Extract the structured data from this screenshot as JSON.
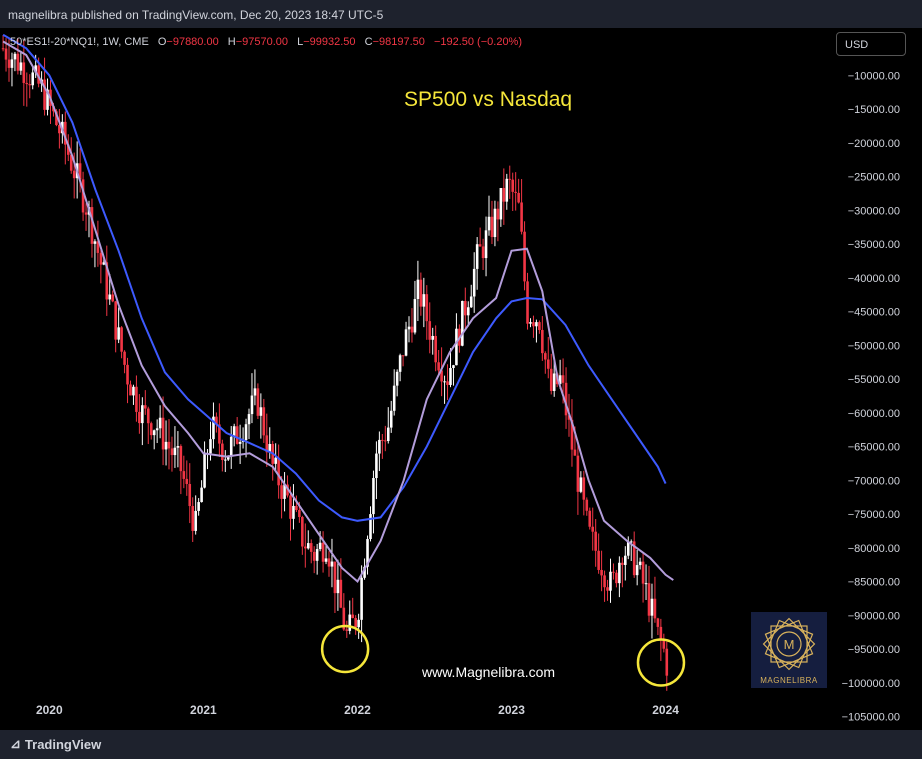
{
  "header": {
    "publisher": "magnelibra published on TradingView.com, Dec 20, 2023 18:47 UTC-5"
  },
  "legend": {
    "symbol": "50*ES1!-20*NQ1!, 1W, CME",
    "o_label": "O",
    "o_value": "−97880.00",
    "h_label": "H",
    "h_value": "−97570.00",
    "l_label": "L",
    "l_value": "−99932.50",
    "c_label": "C",
    "c_value": "−98197.50",
    "change": "−192.50 (−0.20%)",
    "currency": "USD"
  },
  "colors": {
    "up": "#ffffff",
    "down": "#f23645",
    "ma_fast": "#b39ddb",
    "ma_slow": "#3d5afe",
    "circle": "#f5e63a",
    "title": "#f5e63a"
  },
  "footer": {
    "brand": "TradingView"
  },
  "logo": {
    "text": "MAGNELIBRA"
  },
  "chart_data": {
    "type": "candlestick",
    "title": "SP500 vs Nasdaq",
    "watermark": "www.Magnelibra.com",
    "y_ticks": [
      "−10000.00",
      "−15000.00",
      "−20000.00",
      "−25000.00",
      "−30000.00",
      "−35000.00",
      "−40000.00",
      "−45000.00",
      "−50000.00",
      "−55000.00",
      "−60000.00",
      "−65000.00",
      "−70000.00",
      "−75000.00",
      "−80000.00",
      "−85000.00",
      "−90000.00",
      "−95000.00",
      "−100000.00",
      "−105000.00"
    ],
    "y_tick_values": [
      -10000,
      -15000,
      -20000,
      -25000,
      -30000,
      -35000,
      -40000,
      -45000,
      -50000,
      -55000,
      -60000,
      -65000,
      -70000,
      -75000,
      -80000,
      -85000,
      -90000,
      -95000,
      -100000,
      -105000
    ],
    "ylim": [
      -107000,
      -3000
    ],
    "x_ticks": [
      "2020",
      "2021",
      "2022",
      "2023",
      "2024"
    ],
    "x_tick_values": [
      2020.0,
      2021.0,
      2022.0,
      2023.0,
      2024.0
    ],
    "xlim": [
      2019.68,
      2025.08
    ],
    "price_path": [
      [
        2019.7,
        -6000
      ],
      [
        2019.82,
        -8500
      ],
      [
        2019.95,
        -12000
      ],
      [
        2020.1,
        -20000
      ],
      [
        2020.25,
        -30000
      ],
      [
        2020.4,
        -44000
      ],
      [
        2020.5,
        -54000
      ],
      [
        2020.6,
        -60000
      ],
      [
        2020.7,
        -62000
      ],
      [
        2020.85,
        -68000
      ],
      [
        2020.95,
        -77000
      ],
      [
        2021.05,
        -62000
      ],
      [
        2021.15,
        -66000
      ],
      [
        2021.25,
        -62000
      ],
      [
        2021.35,
        -58000
      ],
      [
        2021.45,
        -68000
      ],
      [
        2021.55,
        -73000
      ],
      [
        2021.65,
        -79000
      ],
      [
        2021.72,
        -81000
      ],
      [
        2021.8,
        -79000
      ],
      [
        2021.88,
        -88000
      ],
      [
        2021.93,
        -93000
      ],
      [
        2022.0,
        -90000
      ],
      [
        2022.05,
        -80000
      ],
      [
        2022.12,
        -66000
      ],
      [
        2022.2,
        -62000
      ],
      [
        2022.3,
        -50000
      ],
      [
        2022.4,
        -42000
      ],
      [
        2022.5,
        -50000
      ],
      [
        2022.58,
        -55000
      ],
      [
        2022.68,
        -46000
      ],
      [
        2022.78,
        -37000
      ],
      [
        2022.88,
        -32000
      ],
      [
        2022.98,
        -26000
      ],
      [
        2023.05,
        -30000
      ],
      [
        2023.1,
        -45000
      ],
      [
        2023.18,
        -46000
      ],
      [
        2023.25,
        -57000
      ],
      [
        2023.32,
        -55000
      ],
      [
        2023.4,
        -66000
      ],
      [
        2023.5,
        -78000
      ],
      [
        2023.58,
        -82000
      ],
      [
        2023.65,
        -86000
      ],
      [
        2023.72,
        -80000
      ],
      [
        2023.8,
        -82000
      ],
      [
        2023.88,
        -87000
      ],
      [
        2023.95,
        -93000
      ],
      [
        2024.0,
        -96000
      ],
      [
        2024.02,
        -99000
      ]
    ],
    "ma_fast": [
      [
        2019.7,
        -5000
      ],
      [
        2019.85,
        -7000
      ],
      [
        2020.0,
        -13000
      ],
      [
        2020.15,
        -22000
      ],
      [
        2020.3,
        -33000
      ],
      [
        2020.45,
        -44000
      ],
      [
        2020.6,
        -53000
      ],
      [
        2020.75,
        -59000
      ],
      [
        2020.9,
        -63000
      ],
      [
        2021.0,
        -66000
      ],
      [
        2021.15,
        -66500
      ],
      [
        2021.3,
        -66000
      ],
      [
        2021.45,
        -68000
      ],
      [
        2021.6,
        -73000
      ],
      [
        2021.75,
        -78000
      ],
      [
        2021.9,
        -83000
      ],
      [
        2022.0,
        -85000
      ],
      [
        2022.15,
        -79000
      ],
      [
        2022.3,
        -70000
      ],
      [
        2022.45,
        -58000
      ],
      [
        2022.6,
        -51000
      ],
      [
        2022.75,
        -46000
      ],
      [
        2022.9,
        -43000
      ],
      [
        2023.0,
        -36000
      ],
      [
        2023.1,
        -35700
      ],
      [
        2023.2,
        -42000
      ],
      [
        2023.3,
        -55000
      ],
      [
        2023.4,
        -62000
      ],
      [
        2023.5,
        -70000
      ],
      [
        2023.6,
        -76000
      ],
      [
        2023.75,
        -79000
      ],
      [
        2023.9,
        -81500
      ],
      [
        2024.0,
        -84000
      ],
      [
        2024.05,
        -84800
      ]
    ],
    "ma_slow": [
      [
        2019.7,
        -4000
      ],
      [
        2019.85,
        -6000
      ],
      [
        2020.0,
        -10000
      ],
      [
        2020.15,
        -17000
      ],
      [
        2020.3,
        -27000
      ],
      [
        2020.45,
        -36000
      ],
      [
        2020.6,
        -46000
      ],
      [
        2020.75,
        -54000
      ],
      [
        2020.9,
        -58000
      ],
      [
        2021.0,
        -60000
      ],
      [
        2021.15,
        -63000
      ],
      [
        2021.3,
        -64500
      ],
      [
        2021.45,
        -66000
      ],
      [
        2021.6,
        -69000
      ],
      [
        2021.75,
        -73000
      ],
      [
        2021.9,
        -75500
      ],
      [
        2022.0,
        -76000
      ],
      [
        2022.15,
        -75500
      ],
      [
        2022.3,
        -71000
      ],
      [
        2022.45,
        -65000
      ],
      [
        2022.6,
        -58000
      ],
      [
        2022.75,
        -51000
      ],
      [
        2022.9,
        -46000
      ],
      [
        2023.0,
        -43500
      ],
      [
        2023.1,
        -43000
      ],
      [
        2023.2,
        -43200
      ],
      [
        2023.35,
        -47000
      ],
      [
        2023.5,
        -53000
      ],
      [
        2023.65,
        -58000
      ],
      [
        2023.8,
        -63000
      ],
      [
        2023.95,
        -68000
      ],
      [
        2024.0,
        -70500
      ]
    ],
    "highlight_circles": [
      {
        "x": 2021.92,
        "y": -95000
      },
      {
        "x": 2023.97,
        "y": -97000
      }
    ]
  }
}
